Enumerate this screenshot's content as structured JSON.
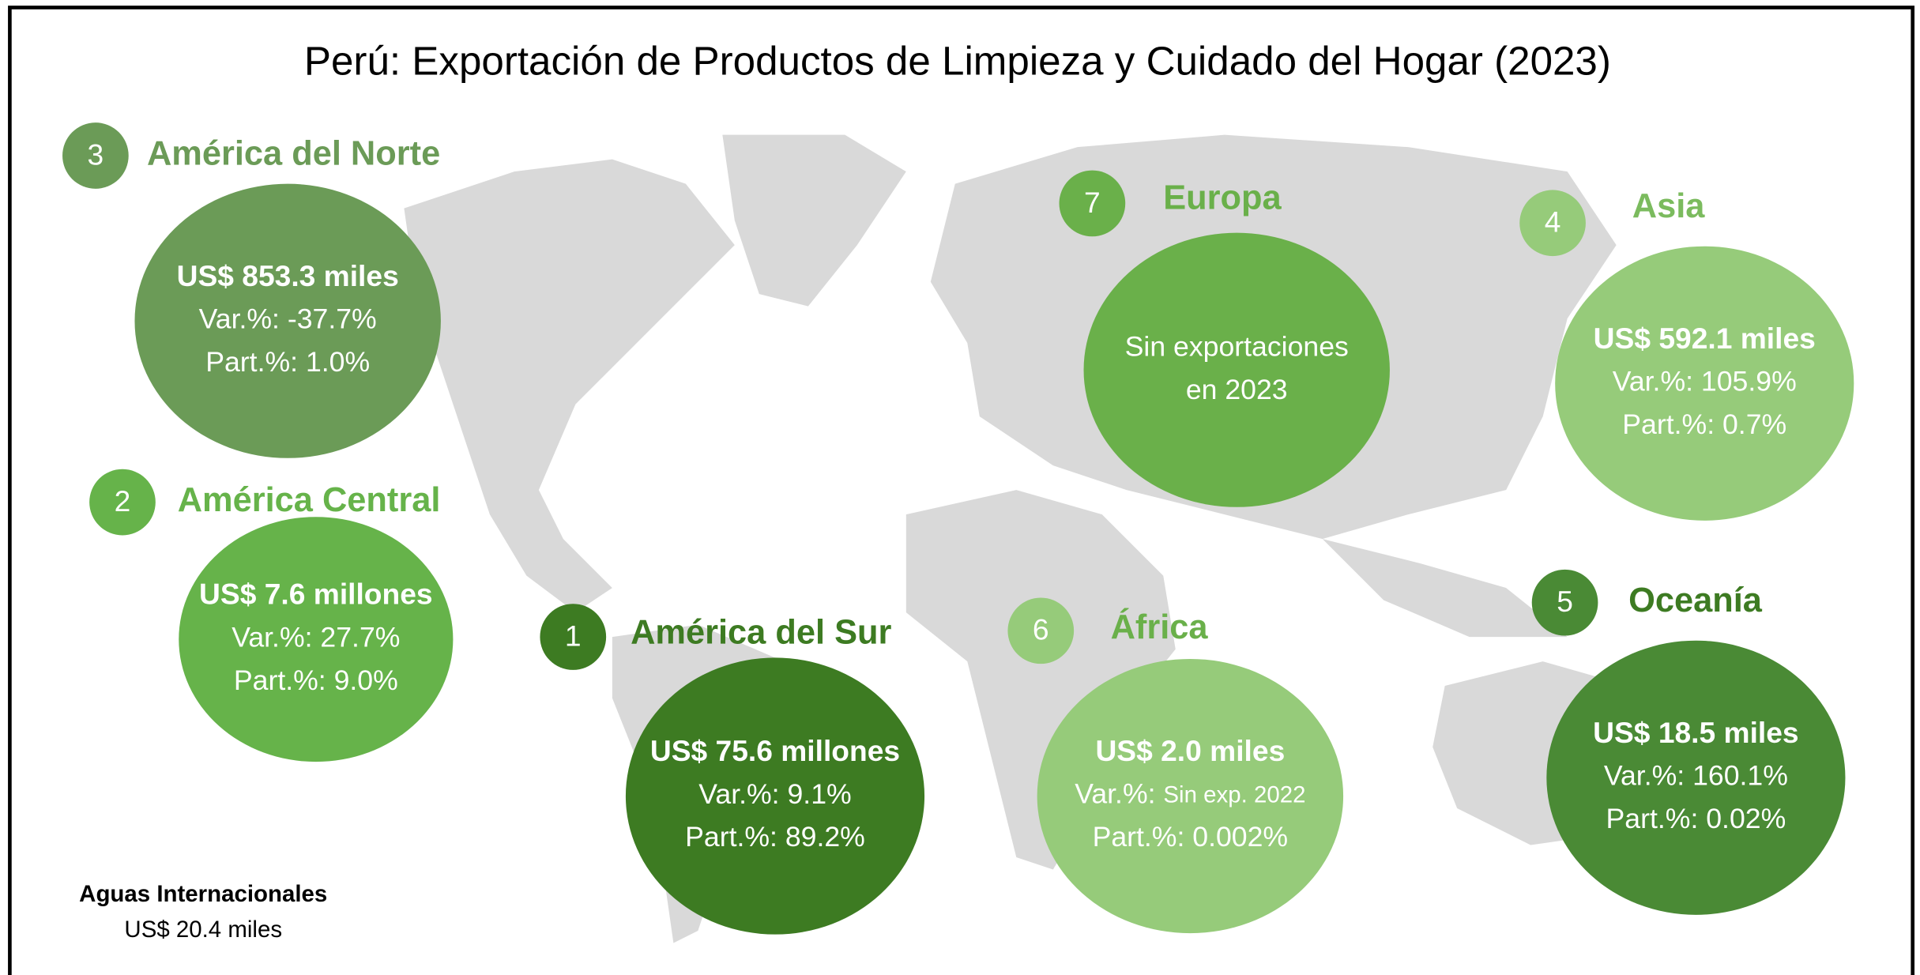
{
  "title": "Perú: Exportación de Productos de Limpieza y Cuidado del Hogar (2023)",
  "regions": [
    {
      "rank": "3",
      "name": "América del Norte",
      "color": "#6b9b57",
      "name_color": "#6b9b57",
      "lines": [
        "US$ 853.3 miles",
        "Var.%: -37.7%",
        "Part.%: 1.0%"
      ]
    },
    {
      "rank": "2",
      "name": "América Central",
      "color": "#66b34a",
      "name_color": "#66b34a",
      "lines": [
        "US$ 7.6 millones",
        "Var.%: 27.7%",
        "Part.%: 9.0%"
      ]
    },
    {
      "rank": "1",
      "name": "América del Sur",
      "color": "#3d7b22",
      "name_color": "#3d7b22",
      "lines": [
        "US$ 75.6 millones",
        "Var.%: 9.1%",
        "Part.%: 89.2%"
      ]
    },
    {
      "rank": "7",
      "name": "Europa",
      "color": "#6ab04a",
      "name_color": "#6ab04a",
      "lines": [
        "Sin exportaciones",
        "en 2023"
      ]
    },
    {
      "rank": "4",
      "name": "Asia",
      "color": "#96cb7a",
      "name_color": "#7bbb5e",
      "lines": [
        "US$ 592.1 miles",
        "Var.%: 105.9%",
        "Part.%: 0.7%"
      ]
    },
    {
      "rank": "6",
      "name": "África",
      "color": "#96cb7a",
      "name_color": "#6ab04a",
      "lines": [
        "US$ 2.0 miles",
        [
          "Var.%: ",
          "Sin exp. 2022"
        ],
        "Part.%: 0.002%"
      ]
    },
    {
      "rank": "5",
      "name": "Oceanía",
      "color": "#4a8a35",
      "name_color": "#3d7b22",
      "lines": [
        "US$ 18.5 miles",
        "Var.%: 160.1%",
        "Part.%: 0.02%"
      ]
    }
  ],
  "footnote": {
    "title": "Aguas Internacionales",
    "value": "US$ 20.4 miles"
  }
}
